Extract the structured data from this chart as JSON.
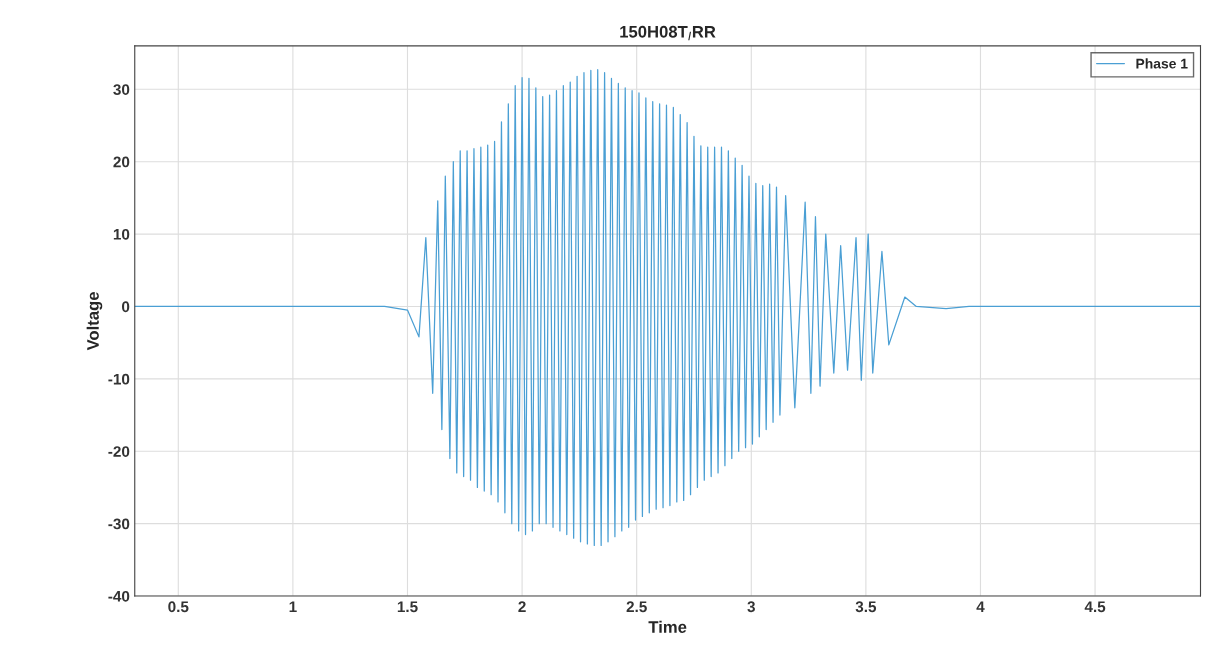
{
  "chart_data": {
    "type": "line",
    "title": "150H08T$_{I}$RR",
    "xlabel": "Time",
    "ylabel": "Voltage",
    "xlim": [
      0.31,
      4.96
    ],
    "ylim": [
      -40,
      36
    ],
    "xticks": [
      0.5,
      1,
      1.5,
      2,
      2.5,
      3,
      3.5,
      4,
      4.5
    ],
    "yticks": [
      -40,
      -30,
      -20,
      -10,
      0,
      10,
      20,
      30
    ],
    "grid": true,
    "legend": "top right",
    "series": [
      {
        "name": "Phase 1",
        "color": "#4a9fd4",
        "x": [
          0.31,
          1.4,
          1.5,
          1.55,
          1.58,
          1.61,
          1.632,
          1.65,
          1.665,
          1.685,
          1.7,
          1.715,
          1.73,
          1.745,
          1.76,
          1.775,
          1.79,
          1.805,
          1.82,
          1.835,
          1.85,
          1.865,
          1.88,
          1.895,
          1.91,
          1.925,
          1.94,
          1.955,
          1.97,
          1.985,
          2.0,
          2.015,
          2.03,
          2.045,
          2.06,
          2.075,
          2.09,
          2.105,
          2.12,
          2.135,
          2.15,
          2.165,
          2.18,
          2.195,
          2.21,
          2.225,
          2.24,
          2.255,
          2.27,
          2.285,
          2.3,
          2.315,
          2.33,
          2.345,
          2.36,
          2.375,
          2.39,
          2.405,
          2.42,
          2.435,
          2.45,
          2.465,
          2.48,
          2.495,
          2.51,
          2.525,
          2.54,
          2.555,
          2.57,
          2.585,
          2.6,
          2.615,
          2.63,
          2.645,
          2.66,
          2.675,
          2.69,
          2.705,
          2.72,
          2.735,
          2.75,
          2.765,
          2.78,
          2.795,
          2.81,
          2.825,
          2.84,
          2.855,
          2.87,
          2.885,
          2.9,
          2.915,
          2.93,
          2.945,
          2.96,
          2.975,
          2.99,
          3.005,
          3.02,
          3.035,
          3.05,
          3.065,
          3.08,
          3.095,
          3.11,
          3.125,
          3.15,
          3.19,
          3.235,
          3.26,
          3.28,
          3.3,
          3.325,
          3.36,
          3.39,
          3.42,
          3.457,
          3.48,
          3.51,
          3.53,
          3.57,
          3.6,
          3.67,
          3.72,
          3.85,
          3.95,
          4.96
        ],
        "values": [
          0,
          0,
          -0.5,
          -4.2,
          9.5,
          -12,
          14.6,
          -17,
          18,
          -21,
          20,
          -23,
          21.5,
          -23.5,
          21.5,
          -24,
          21.8,
          -25,
          22,
          -25.5,
          22.3,
          -26,
          22.8,
          -27,
          25.5,
          -28.5,
          28,
          -30,
          30.5,
          -31,
          31.6,
          -31.5,
          31.5,
          -31,
          30.2,
          -30,
          29,
          -30,
          29.2,
          -30.5,
          29.8,
          -31,
          30.5,
          -31.5,
          31,
          -32,
          31.8,
          -32.5,
          32.3,
          -32.8,
          32.6,
          -33,
          32.7,
          -33,
          32.3,
          -32.5,
          31.5,
          -31.8,
          30.8,
          -31,
          30.2,
          -30.5,
          29.8,
          -29.5,
          29.5,
          -29,
          28.8,
          -28.5,
          28.3,
          -28,
          28,
          -27.8,
          27.8,
          -27.5,
          27.5,
          -27,
          26.5,
          -26.8,
          25.4,
          -26,
          23.5,
          -25,
          22.2,
          -24,
          22,
          -23.5,
          22,
          -23,
          22,
          -22,
          21.5,
          -21,
          20.5,
          -20,
          19.5,
          -19.5,
          18,
          -19,
          17,
          -18,
          16.7,
          -17,
          16.9,
          -16,
          16.5,
          -15,
          15.3,
          -14,
          14.4,
          -12,
          12.4,
          -11,
          10,
          -9.2,
          8.4,
          -8.8,
          9.5,
          -10.2,
          10,
          -9.2,
          7.6,
          -5.3,
          1.3,
          0,
          -0.3,
          0,
          0
        ]
      }
    ]
  }
}
